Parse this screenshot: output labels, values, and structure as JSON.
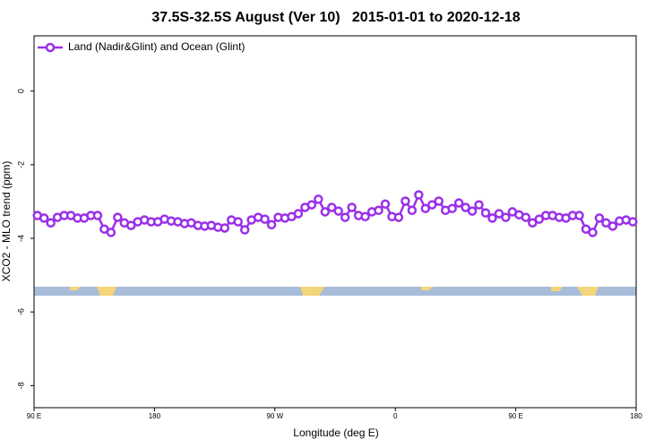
{
  "chart_data": {
    "type": "line",
    "title": "37.5S-32.5S August (Ver 10)   2015-01-01 to 2020-12-18",
    "x_label": "Longitude (deg E)",
    "y_label": "XCO2 - MLO trend (ppm)",
    "xlim": [
      90,
      540
    ],
    "ylim": [
      -8.6,
      1.5
    ],
    "xticks": [
      {
        "value": 90,
        "label": "90 E"
      },
      {
        "value": 180,
        "label": "180"
      },
      {
        "value": 270,
        "label": "90 W"
      },
      {
        "value": 360,
        "label": "0"
      },
      {
        "value": 450,
        "label": "90 E"
      },
      {
        "value": 540,
        "label": "180"
      }
    ],
    "yticks": [
      0,
      -2,
      -4,
      -6,
      -8
    ],
    "legend": "top-left",
    "x": [
      92.5,
      97.5,
      102.5,
      107.5,
      112.5,
      117.5,
      122.5,
      127.5,
      132.5,
      137.5,
      142.5,
      147.5,
      152.5,
      157.5,
      162.5,
      167.5,
      172.5,
      177.5,
      182.5,
      187.5,
      192.5,
      197.5,
      202.5,
      207.5,
      212.5,
      217.5,
      222.5,
      227.5,
      232.5,
      237.5,
      242.5,
      247.5,
      252.5,
      257.5,
      262.5,
      267.5,
      272.5,
      277.5,
      282.5,
      287.5,
      292.5,
      297.5,
      302.5,
      307.5,
      312.5,
      317.5,
      322.5,
      327.5,
      332.5,
      337.5,
      342.5,
      347.5,
      352.5,
      357.5,
      362.5,
      367.5,
      372.5,
      377.5,
      382.5,
      387.5,
      392.5,
      397.5,
      402.5,
      407.5,
      412.5,
      417.5,
      422.5,
      427.5,
      432.5,
      437.5,
      442.5,
      447.5,
      452.5,
      457.5,
      462.5,
      467.5,
      472.5,
      477.5,
      482.5,
      487.5,
      492.5,
      497.5,
      502.5,
      507.5,
      512.5,
      517.5,
      522.5,
      527.5,
      532.5,
      537.5
    ],
    "series": [
      {
        "name": "Land (Nadir&Glint) and Ocean (Glint)",
        "color": "#9b30e8",
        "values": [
          -3.38,
          -3.45,
          -3.58,
          -3.43,
          -3.38,
          -3.38,
          -3.45,
          -3.45,
          -3.38,
          -3.38,
          -3.75,
          -3.84,
          -3.43,
          -3.58,
          -3.65,
          -3.55,
          -3.5,
          -3.55,
          -3.55,
          -3.48,
          -3.53,
          -3.55,
          -3.6,
          -3.58,
          -3.65,
          -3.67,
          -3.65,
          -3.7,
          -3.72,
          -3.5,
          -3.55,
          -3.77,
          -3.5,
          -3.43,
          -3.48,
          -3.63,
          -3.43,
          -3.45,
          -3.41,
          -3.33,
          -3.16,
          -3.09,
          -2.94,
          -3.28,
          -3.16,
          -3.26,
          -3.43,
          -3.16,
          -3.38,
          -3.41,
          -3.28,
          -3.24,
          -3.07,
          -3.41,
          -3.43,
          -2.99,
          -3.24,
          -2.82,
          -3.19,
          -3.09,
          -2.99,
          -3.24,
          -3.19,
          -3.04,
          -3.16,
          -3.26,
          -3.09,
          -3.31,
          -3.45,
          -3.33,
          -3.43,
          -3.28,
          -3.36,
          -3.43,
          -3.58,
          -3.48,
          -3.38,
          -3.38,
          -3.43,
          -3.45,
          -3.38,
          -3.38,
          -3.75,
          -3.84,
          -3.45,
          -3.58,
          -3.67,
          -3.53,
          -3.5,
          -3.55
        ]
      }
    ]
  }
}
